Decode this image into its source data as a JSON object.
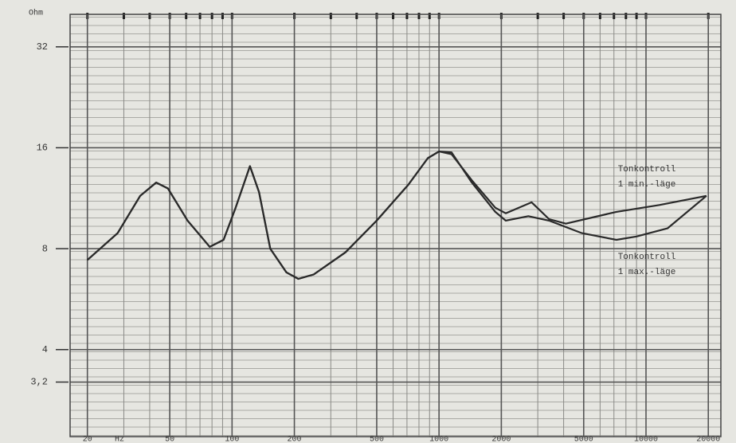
{
  "chart_data": {
    "type": "line",
    "y_unit": "Ohm",
    "x_unit": "Hz",
    "log_x": true,
    "log_y": true,
    "grid": true,
    "xlim": [
      16.5,
      23000
    ],
    "ylim": [
      2.2,
      40
    ],
    "xticks": [
      20,
      50,
      100,
      200,
      500,
      1000,
      2000,
      5000,
      10000,
      20000
    ],
    "x_minor_ticks": [
      20,
      30,
      40,
      50,
      60,
      70,
      80,
      90,
      100,
      200,
      300,
      400,
      500,
      600,
      700,
      800,
      900,
      1000,
      2000,
      3000,
      4000,
      5000,
      6000,
      7000,
      8000,
      9000,
      10000,
      20000
    ],
    "yticks": [
      32,
      16,
      8,
      4,
      {
        "value": 3.2,
        "label": "3,2"
      }
    ],
    "annotations": [
      [
        "Tonkontroll",
        "1 min.-läge"
      ],
      [
        "Tonkontroll",
        "1 max.-läge"
      ]
    ],
    "series": [
      {
        "color": "#2a2a2a",
        "x": [
          20,
          28,
          36,
          43,
          49,
          61,
          78,
          91,
          104,
          122,
          135,
          153,
          183,
          209,
          248,
          353,
          500,
          710,
          883,
          1000,
          1150,
          1440,
          1870,
          2100,
          2800,
          3400,
          4100,
          7200,
          11600,
          19600
        ],
        "values": [
          7.4,
          8.9,
          11.5,
          12.6,
          12.1,
          9.7,
          8.1,
          8.5,
          10.6,
          14.1,
          11.8,
          8.0,
          6.8,
          6.5,
          6.7,
          7.8,
          9.7,
          12.4,
          14.9,
          15.6,
          15.3,
          12.8,
          10.6,
          10.2,
          11.0,
          9.8,
          9.5,
          10.3,
          10.8,
          11.5
        ]
      },
      {
        "color": "#2a2a2a",
        "x": [
          20,
          28,
          36,
          43,
          49,
          61,
          78,
          91,
          104,
          122,
          135,
          153,
          183,
          209,
          248,
          353,
          500,
          710,
          883,
          1000,
          1150,
          1440,
          1870,
          2100,
          2700,
          3400,
          4900,
          7200,
          9000,
          12700,
          19600
        ],
        "values": [
          7.4,
          8.9,
          11.5,
          12.6,
          12.1,
          9.7,
          8.1,
          8.5,
          10.6,
          14.1,
          11.8,
          8.0,
          6.8,
          6.5,
          6.7,
          7.8,
          9.7,
          12.4,
          14.9,
          15.6,
          15.5,
          12.6,
          10.3,
          9.7,
          10.0,
          9.7,
          8.9,
          8.5,
          8.7,
          9.2,
          11.5
        ]
      }
    ]
  }
}
